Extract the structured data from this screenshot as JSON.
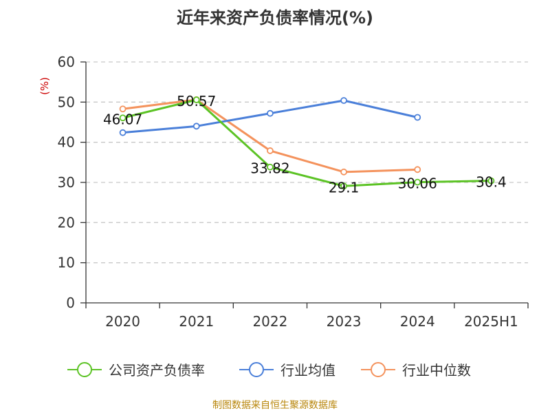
{
  "title": "近年来资产负债率情况(%)",
  "source": "制图数据来自恒生聚源数据库",
  "chart_data": {
    "type": "line",
    "title": "近年来资产负债率情况(%)",
    "y_unit": "(%)",
    "categories": [
      "2020",
      "2021",
      "2022",
      "2023",
      "2024",
      "2025H1"
    ],
    "ylim": [
      0,
      60
    ],
    "yticks": [
      0,
      10,
      20,
      30,
      40,
      50,
      60
    ],
    "grid": "horizontal dashed",
    "legend_position": "bottom",
    "series": [
      {
        "name": "公司资产负债率",
        "color": "#5cc325",
        "values": [
          46.07,
          50.57,
          33.82,
          29.1,
          30.06,
          30.4
        ],
        "labels": [
          "46.07",
          "50.57",
          "33.82",
          "29.1",
          "30.06",
          "30.4"
        ]
      },
      {
        "name": "行业均值",
        "color": "#4a7fd9",
        "values": [
          42.4,
          44.0,
          47.2,
          50.4,
          46.2,
          null
        ]
      },
      {
        "name": "行业中位数",
        "color": "#f4925c",
        "values": [
          48.3,
          50.6,
          37.9,
          32.6,
          33.2,
          null
        ]
      }
    ]
  }
}
